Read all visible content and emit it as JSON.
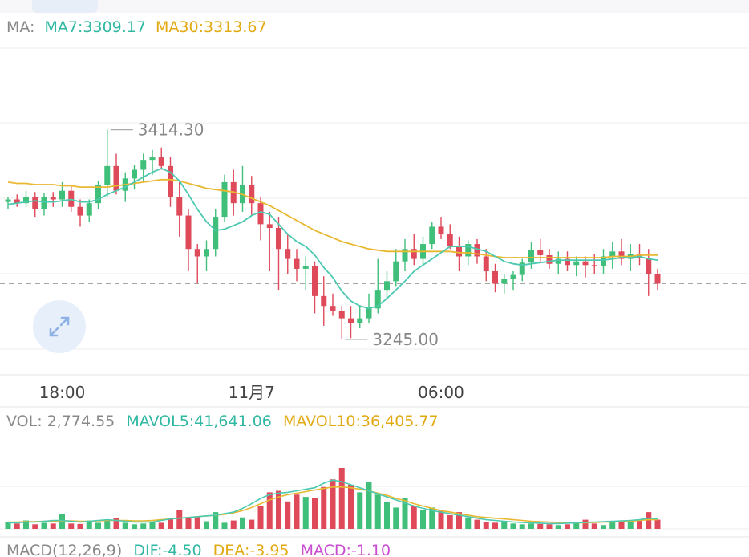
{
  "legend": {
    "ma": {
      "label": "MA:",
      "ma7": "MA7:3309.17",
      "ma30": "MA30:3313.67"
    },
    "vol": {
      "label": "VOL: 2,774.55",
      "mavol5": "MAVOL5:41,641.06",
      "mavol10": "MAVOL10:36,405.77"
    },
    "macd": {
      "label": "MACD(12,26,9)",
      "dif": "DIF:-4.50",
      "dea": "DEA:-3.95",
      "macd": "MACD:-1.10"
    }
  },
  "colors": {
    "up": "#3fbf7a",
    "down": "#de4a5a",
    "ma7": "#4cc9b0",
    "ma30": "#e8b830",
    "grid": "#eeeeee",
    "text": "#444444",
    "muted": "#888888"
  },
  "icons": {
    "zoom": "expand-arrows-icon"
  },
  "chart_data": {
    "type": "candlestick",
    "x_ticks": [
      "18:00",
      "11月7",
      "06:00"
    ],
    "x_tick_positions": [
      6,
      27,
      48
    ],
    "annotations": {
      "high": "3414.30",
      "low": "3245.00",
      "high_value": 3414.3,
      "low_value": 3245.0
    },
    "price_range": [
      3230,
      3440
    ],
    "current_price": 3290,
    "ohlc": [
      [
        3356,
        3360,
        3350,
        3358
      ],
      [
        3358,
        3362,
        3352,
        3355
      ],
      [
        3355,
        3365,
        3352,
        3360
      ],
      [
        3360,
        3364,
        3344,
        3350
      ],
      [
        3350,
        3363,
        3345,
        3360
      ],
      [
        3360,
        3364,
        3352,
        3358
      ],
      [
        3358,
        3372,
        3352,
        3365
      ],
      [
        3365,
        3370,
        3348,
        3352
      ],
      [
        3352,
        3358,
        3336,
        3345
      ],
      [
        3345,
        3358,
        3340,
        3355
      ],
      [
        3355,
        3373,
        3350,
        3370
      ],
      [
        3370,
        3414.3,
        3360,
        3385
      ],
      [
        3385,
        3395,
        3362,
        3365
      ],
      [
        3365,
        3380,
        3356,
        3375
      ],
      [
        3375,
        3386,
        3366,
        3382
      ],
      [
        3382,
        3395,
        3372,
        3390
      ],
      [
        3390,
        3398,
        3378,
        3392
      ],
      [
        3392,
        3400,
        3382,
        3385
      ],
      [
        3385,
        3392,
        3352,
        3360
      ],
      [
        3360,
        3372,
        3328,
        3345
      ],
      [
        3345,
        3350,
        3300,
        3318
      ],
      [
        3318,
        3322,
        3290,
        3312
      ],
      [
        3312,
        3325,
        3300,
        3318
      ],
      [
        3318,
        3350,
        3312,
        3344
      ],
      [
        3344,
        3378,
        3340,
        3372
      ],
      [
        3372,
        3382,
        3345,
        3355
      ],
      [
        3355,
        3385,
        3348,
        3370
      ],
      [
        3370,
        3377,
        3345,
        3355
      ],
      [
        3355,
        3360,
        3325,
        3338
      ],
      [
        3338,
        3348,
        3300,
        3335
      ],
      [
        3335,
        3344,
        3285,
        3318
      ],
      [
        3318,
        3330,
        3298,
        3310
      ],
      [
        3310,
        3318,
        3292,
        3302
      ],
      [
        3302,
        3312,
        3285,
        3304
      ],
      [
        3304,
        3308,
        3266,
        3280
      ],
      [
        3280,
        3296,
        3256,
        3272
      ],
      [
        3272,
        3282,
        3264,
        3268
      ],
      [
        3268,
        3272,
        3245,
        3262
      ],
      [
        3262,
        3272,
        3246,
        3258
      ],
      [
        3258,
        3272,
        3254,
        3262
      ],
      [
        3262,
        3282,
        3258,
        3270
      ],
      [
        3270,
        3310,
        3266,
        3285
      ],
      [
        3285,
        3300,
        3278,
        3292
      ],
      [
        3292,
        3318,
        3288,
        3308
      ],
      [
        3308,
        3326,
        3300,
        3318
      ],
      [
        3318,
        3330,
        3305,
        3310
      ],
      [
        3310,
        3328,
        3305,
        3322
      ],
      [
        3322,
        3340,
        3318,
        3336
      ],
      [
        3336,
        3344,
        3326,
        3330
      ],
      [
        3330,
        3338,
        3318,
        3320
      ],
      [
        3320,
        3328,
        3300,
        3312
      ],
      [
        3312,
        3325,
        3305,
        3322
      ],
      [
        3322,
        3326,
        3306,
        3312
      ],
      [
        3312,
        3318,
        3292,
        3300
      ],
      [
        3300,
        3306,
        3283,
        3290
      ],
      [
        3290,
        3298,
        3282,
        3294
      ],
      [
        3294,
        3300,
        3285,
        3297
      ],
      [
        3297,
        3310,
        3292,
        3307
      ],
      [
        3307,
        3324,
        3302,
        3317
      ],
      [
        3317,
        3326,
        3307,
        3313
      ],
      [
        3313,
        3318,
        3302,
        3306
      ],
      [
        3306,
        3316,
        3298,
        3310
      ],
      [
        3310,
        3316,
        3300,
        3305
      ],
      [
        3305,
        3312,
        3296,
        3308
      ],
      [
        3308,
        3312,
        3295,
        3305
      ],
      [
        3305,
        3314,
        3298,
        3304
      ],
      [
        3304,
        3318,
        3298,
        3312
      ],
      [
        3312,
        3324,
        3302,
        3316
      ],
      [
        3316,
        3326,
        3305,
        3310
      ],
      [
        3310,
        3322,
        3300,
        3314
      ],
      [
        3314,
        3322,
        3305,
        3311
      ],
      [
        3311,
        3318,
        3280,
        3298
      ],
      [
        3298,
        3302,
        3285,
        3290
      ]
    ],
    "ma7": [
      3354,
      3355,
      3356,
      3357,
      3356,
      3356,
      3357,
      3358,
      3356,
      3356,
      3358,
      3362,
      3365,
      3368,
      3372,
      3376,
      3380,
      3383,
      3380,
      3373,
      3362,
      3350,
      3340,
      3333,
      3334,
      3337,
      3340,
      3345,
      3348,
      3346,
      3338,
      3330,
      3324,
      3320,
      3313,
      3303,
      3295,
      3284,
      3276,
      3272,
      3270,
      3272,
      3278,
      3285,
      3292,
      3300,
      3305,
      3310,
      3315,
      3320,
      3320,
      3320,
      3318,
      3316,
      3312,
      3308,
      3306,
      3305,
      3306,
      3307,
      3308,
      3309,
      3309,
      3309,
      3309,
      3309,
      3309,
      3310,
      3311,
      3311,
      3312,
      3310,
      3309
    ],
    "ma30": [
      3372,
      3371,
      3371,
      3370,
      3370,
      3370,
      3369,
      3369,
      3368,
      3368,
      3368,
      3368,
      3369,
      3370,
      3371,
      3372,
      3373,
      3374,
      3374,
      3373,
      3371,
      3369,
      3367,
      3366,
      3365,
      3364,
      3362,
      3359,
      3356,
      3353,
      3349,
      3345,
      3341,
      3337,
      3333,
      3330,
      3327,
      3324,
      3322,
      3320,
      3318,
      3317,
      3316,
      3316,
      3316,
      3316,
      3316,
      3316,
      3316,
      3316,
      3315,
      3315,
      3314,
      3313,
      3312,
      3311,
      3311,
      3311,
      3311,
      3311,
      3311,
      3311,
      3311,
      3311,
      3311,
      3311,
      3311,
      3312,
      3312,
      3312,
      3313,
      3313,
      3313
    ],
    "volume": {
      "range": [
        0,
        120000
      ],
      "values": [
        9000,
        7000,
        11000,
        6000,
        8000,
        7000,
        20000,
        7000,
        6500,
        11000,
        8000,
        12000,
        14000,
        8000,
        6000,
        7000,
        9000,
        8000,
        14000,
        25000,
        14000,
        16000,
        10000,
        22000,
        8000,
        11000,
        15000,
        12000,
        30000,
        48000,
        50000,
        36000,
        45000,
        42000,
        40000,
        55000,
        65000,
        80000,
        58000,
        48000,
        62000,
        45000,
        35000,
        28000,
        40000,
        30000,
        25000,
        28000,
        24000,
        18000,
        22000,
        15000,
        12000,
        9000,
        8000,
        10000,
        7000,
        6000,
        7000,
        6500,
        6000,
        5000,
        6000,
        8000,
        12000,
        7000,
        5000,
        9000,
        10000,
        9000,
        12000,
        22000,
        12000
      ],
      "mavol5": [
        8000,
        8000,
        9000,
        9000,
        10000,
        11000,
        11000,
        10000,
        9000,
        10000,
        11000,
        12000,
        11000,
        10000,
        9000,
        9000,
        9000,
        11000,
        13000,
        14000,
        15000,
        16000,
        17000,
        18000,
        20000,
        22000,
        27000,
        33000,
        40000,
        45000,
        47000,
        48000,
        50000,
        52000,
        54000,
        60000,
        64000,
        62000,
        58000,
        54000,
        50000,
        46000,
        42000,
        38000,
        34000,
        30000,
        27000,
        24000,
        22000,
        20000,
        18000,
        16000,
        14000,
        12000,
        11000,
        10000,
        9000,
        8500,
        8000,
        7500,
        7000,
        7000,
        7500,
        8000,
        8500,
        9000,
        9500,
        10000,
        10500,
        11000,
        12000,
        14000,
        13000
      ],
      "mavol10": [
        9000,
        9000,
        9500,
        9500,
        10000,
        10000,
        10500,
        10500,
        10000,
        10000,
        10500,
        11000,
        11000,
        11000,
        10500,
        10500,
        11000,
        12000,
        13000,
        14000,
        15000,
        16000,
        17000,
        18000,
        19000,
        21000,
        24000,
        28000,
        33000,
        38000,
        42000,
        45000,
        47000,
        49000,
        51000,
        53000,
        55000,
        55000,
        54000,
        52000,
        50000,
        47000,
        44000,
        40000,
        37000,
        33000,
        30000,
        27000,
        24000,
        22000,
        20000,
        18000,
        16000,
        15000,
        14000,
        13000,
        12000,
        11000,
        10000,
        9500,
        9000,
        8500,
        8000,
        8000,
        8000,
        8500,
        9000,
        9000,
        9500,
        10000,
        11000,
        12000,
        12000
      ]
    },
    "series": [
      {
        "name": "MA7",
        "color": "#4cc9b0"
      },
      {
        "name": "MA30",
        "color": "#e8b830"
      }
    ]
  }
}
